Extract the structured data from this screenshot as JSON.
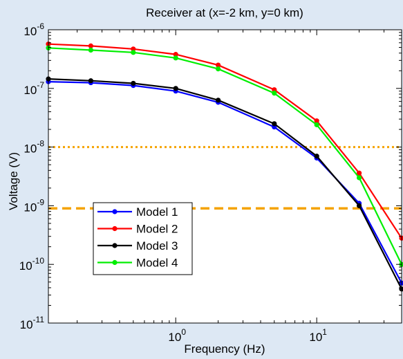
{
  "chart_data": {
    "type": "line",
    "title": "Receiver at (x=-2 km, y=0 km)",
    "xlabel": "Frequency (Hz)",
    "ylabel": "Voltage (V)",
    "x_scale": "log",
    "y_scale": "log",
    "xlim": [
      0.125,
      40
    ],
    "ylim": [
      1e-11,
      1e-06
    ],
    "grid": false,
    "legend_position": "bottom-left",
    "x_ticks": [
      {
        "value": 1,
        "base": "10",
        "exp": "0"
      },
      {
        "value": 10,
        "base": "10",
        "exp": "1"
      }
    ],
    "y_ticks": [
      {
        "value": 1e-06,
        "base": "10",
        "exp": "-6"
      },
      {
        "value": 1e-07,
        "base": "10",
        "exp": "-7"
      },
      {
        "value": 1e-08,
        "base": "10",
        "exp": "-8"
      },
      {
        "value": 1e-09,
        "base": "10",
        "exp": "-9"
      },
      {
        "value": 1e-10,
        "base": "10",
        "exp": "-10"
      },
      {
        "value": 1e-11,
        "base": "10",
        "exp": "-11"
      }
    ],
    "x": [
      0.125,
      0.25,
      0.5,
      1,
      2,
      5,
      10,
      20,
      40
    ],
    "series": [
      {
        "name": "Model 1",
        "color": "#0000ff",
        "values": [
          1.3e-07,
          1.25e-07,
          1.12e-07,
          9e-08,
          5.8e-08,
          2.2e-08,
          6.5e-09,
          1.1e-09,
          4.8e-11
        ]
      },
      {
        "name": "Model 2",
        "color": "#ff0000",
        "values": [
          5.7e-07,
          5.3e-07,
          4.7e-07,
          3.8e-07,
          2.5e-07,
          9.5e-08,
          2.8e-08,
          3.6e-09,
          2.8e-10
        ]
      },
      {
        "name": "Model 3",
        "color": "#000000",
        "values": [
          1.45e-07,
          1.35e-07,
          1.22e-07,
          1e-07,
          6.3e-08,
          2.5e-08,
          7e-09,
          1e-09,
          3.8e-11
        ]
      },
      {
        "name": "Model 4",
        "color": "#00ee00",
        "values": [
          4.9e-07,
          4.5e-07,
          4.1e-07,
          3.3e-07,
          2.15e-07,
          8.3e-08,
          2.4e-08,
          3e-09,
          1e-10
        ]
      }
    ],
    "reference_lines": [
      {
        "y": 1e-08,
        "style": "dotted",
        "color": "#f5a300"
      },
      {
        "y": 9e-10,
        "style": "dashed",
        "color": "#f5a300"
      }
    ]
  }
}
